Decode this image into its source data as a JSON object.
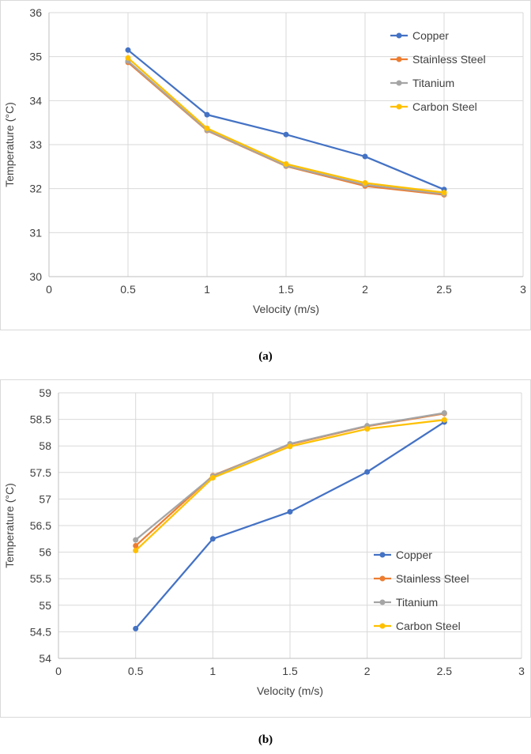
{
  "chart_data": [
    {
      "type": "line",
      "panel_label": "(a)",
      "title": "",
      "xlabel": "Velocity (m/s)",
      "ylabel": "Temperature (°C)",
      "xlim": [
        0,
        3
      ],
      "ylim": [
        30,
        36
      ],
      "xticks": [
        0,
        0.5,
        1,
        1.5,
        2,
        2.5,
        3
      ],
      "xtick_labels": [
        "0",
        "0.5",
        "1",
        "1.5",
        "2",
        "2.5",
        "3"
      ],
      "yticks": [
        30,
        31,
        32,
        33,
        34,
        35,
        36
      ],
      "ytick_labels": [
        "30",
        "31",
        "32",
        "33",
        "34",
        "35",
        "36"
      ],
      "grid": true,
      "legend_position": "top-right",
      "x": [
        0.5,
        1,
        1.5,
        2,
        2.5
      ],
      "series": [
        {
          "name": "Copper",
          "color": "#4472C4",
          "values": [
            35.15,
            33.68,
            33.23,
            32.73,
            31.98
          ]
        },
        {
          "name": "Stainless Steel",
          "color": "#ED7D31",
          "values": [
            34.87,
            33.32,
            32.51,
            32.06,
            31.86
          ]
        },
        {
          "name": "Titanium",
          "color": "#A5A5A5",
          "values": [
            34.9,
            33.33,
            32.52,
            32.09,
            31.88
          ]
        },
        {
          "name": "Carbon Steel",
          "color": "#FFC000",
          "values": [
            34.97,
            33.37,
            32.56,
            32.13,
            31.91
          ]
        }
      ]
    },
    {
      "type": "line",
      "panel_label": "(b)",
      "title": "",
      "xlabel": "Velocity (m/s)",
      "ylabel": "Temperature (°C)",
      "xlim": [
        0,
        3
      ],
      "ylim": [
        54,
        59
      ],
      "xticks": [
        0,
        0.5,
        1,
        1.5,
        2,
        2.5,
        3
      ],
      "xtick_labels": [
        "0",
        "0.5",
        "1",
        "1.5",
        "2",
        "2.5",
        "3"
      ],
      "yticks": [
        54,
        54.5,
        55,
        55.5,
        56,
        56.5,
        57,
        57.5,
        58,
        58.5,
        59
      ],
      "ytick_labels": [
        "54",
        "54.5",
        "55",
        "55.5",
        "56",
        "56.5",
        "57",
        "57.5",
        "58",
        "58.5",
        "59"
      ],
      "grid": true,
      "legend_position": "bottom-right",
      "x": [
        0.5,
        1,
        1.5,
        2,
        2.5
      ],
      "series": [
        {
          "name": "Copper",
          "color": "#4472C4",
          "values": [
            54.56,
            56.25,
            56.76,
            57.51,
            58.45
          ]
        },
        {
          "name": "Stainless Steel",
          "color": "#ED7D31",
          "values": [
            56.12,
            57.44,
            58.03,
            58.37,
            58.61
          ]
        },
        {
          "name": "Titanium",
          "color": "#A5A5A5",
          "values": [
            56.23,
            57.43,
            58.04,
            58.38,
            58.62
          ]
        },
        {
          "name": "Carbon Steel",
          "color": "#FFC000",
          "values": [
            56.03,
            57.4,
            57.99,
            58.32,
            58.49
          ]
        }
      ]
    }
  ]
}
